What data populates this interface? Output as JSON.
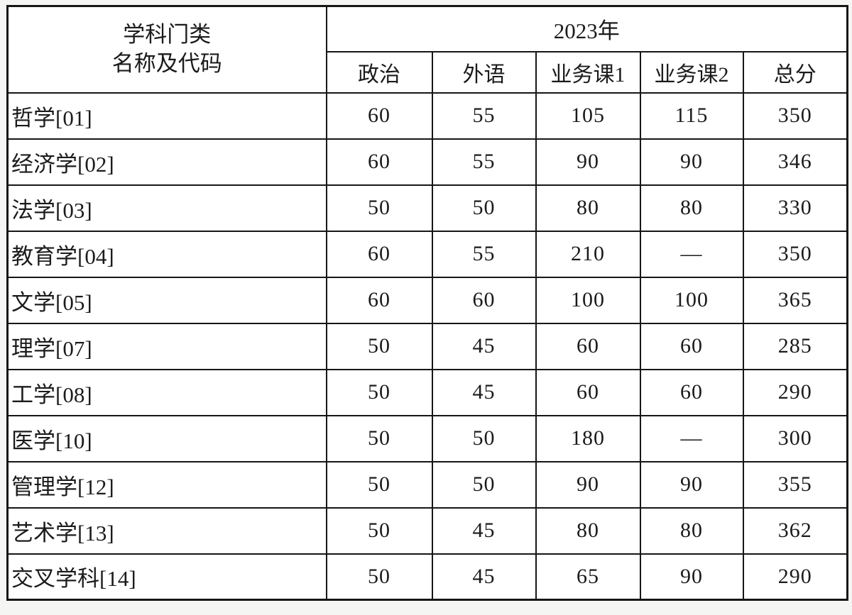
{
  "table": {
    "corner_header_line1": "学科门类",
    "corner_header_line2": "名称及代码",
    "year_header": "2023年",
    "columns": [
      "政治",
      "外语",
      "业务课1",
      "业务课2",
      "总分"
    ],
    "rows": [
      {
        "label": "哲学[01]",
        "scores": [
          "60",
          "55",
          "105",
          "115",
          "350"
        ]
      },
      {
        "label": "经济学[02]",
        "scores": [
          "60",
          "55",
          "90",
          "90",
          "346"
        ]
      },
      {
        "label": "法学[03]",
        "scores": [
          "50",
          "50",
          "80",
          "80",
          "330"
        ]
      },
      {
        "label": "教育学[04]",
        "scores": [
          "60",
          "55",
          "210",
          "—",
          "350"
        ]
      },
      {
        "label": "文学[05]",
        "scores": [
          "60",
          "60",
          "100",
          "100",
          "365"
        ]
      },
      {
        "label": "理学[07]",
        "scores": [
          "50",
          "45",
          "60",
          "60",
          "285"
        ]
      },
      {
        "label": "工学[08]",
        "scores": [
          "50",
          "45",
          "60",
          "60",
          "290"
        ]
      },
      {
        "label": "医学[10]",
        "scores": [
          "50",
          "50",
          "180",
          "—",
          "300"
        ]
      },
      {
        "label": "管理学[12]",
        "scores": [
          "50",
          "50",
          "90",
          "90",
          "355"
        ]
      },
      {
        "label": "艺术学[13]",
        "scores": [
          "50",
          "45",
          "80",
          "80",
          "362"
        ]
      },
      {
        "label": "交叉学科[14]",
        "scores": [
          "50",
          "45",
          "65",
          "90",
          "290"
        ]
      }
    ],
    "colors": {
      "border": "#161616",
      "text": "#1b1b1b",
      "cell_background": "#ffffff",
      "page_background": "#f5f5f4"
    }
  }
}
